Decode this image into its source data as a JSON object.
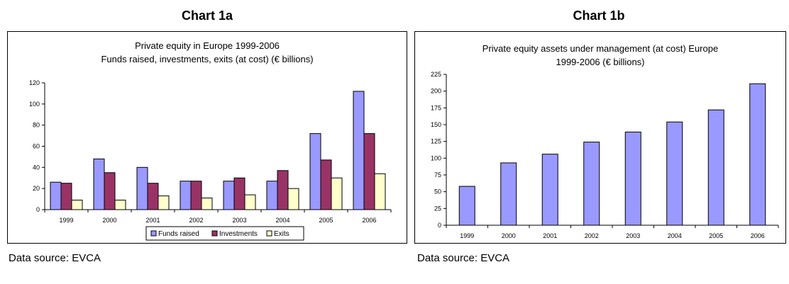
{
  "chart_data": [
    {
      "heading": "Chart 1a",
      "type": "bar",
      "title": "Private equity in Europe 1999-2006",
      "subtitle": "Funds raised, investments, exits (at cost) (€ billions)",
      "categories": [
        "1999",
        "2000",
        "2001",
        "2002",
        "2003",
        "2004",
        "2005",
        "2006"
      ],
      "series": [
        {
          "name": "Funds raised",
          "values": [
            26,
            48,
            40,
            27,
            27,
            27,
            72,
            112
          ],
          "color": "#9999ff"
        },
        {
          "name": "Investments",
          "values": [
            25,
            35,
            25,
            27,
            30,
            37,
            47,
            72
          ],
          "color": "#993366"
        },
        {
          "name": "Exits",
          "values": [
            9,
            9,
            13,
            11,
            14,
            20,
            30,
            34
          ],
          "color": "#ffffcc"
        }
      ],
      "ylim": [
        0,
        120
      ],
      "yticks": [
        "0",
        "20",
        "40",
        "60",
        "80",
        "100",
        "120"
      ],
      "legend": "bottom",
      "grid": false,
      "source": "Data source: EVCA"
    },
    {
      "heading": "Chart 1b",
      "type": "bar",
      "title": "Private equity assets under management (at cost) Europe",
      "subtitle": "1999-2006 (€ billions)",
      "categories": [
        "1999",
        "2000",
        "2001",
        "2002",
        "2003",
        "2004",
        "2005",
        "2006"
      ],
      "series": [
        {
          "values": [
            58,
            93,
            106,
            124,
            139,
            154,
            172,
            211
          ],
          "color": "#9999ff"
        }
      ],
      "ylim": [
        0,
        225
      ],
      "yticks": [
        "0",
        "25",
        "50",
        "75",
        "100",
        "125",
        "150",
        "175",
        "200",
        "225"
      ],
      "legend": "none",
      "grid": false,
      "source": "Data source: EVCA"
    }
  ]
}
